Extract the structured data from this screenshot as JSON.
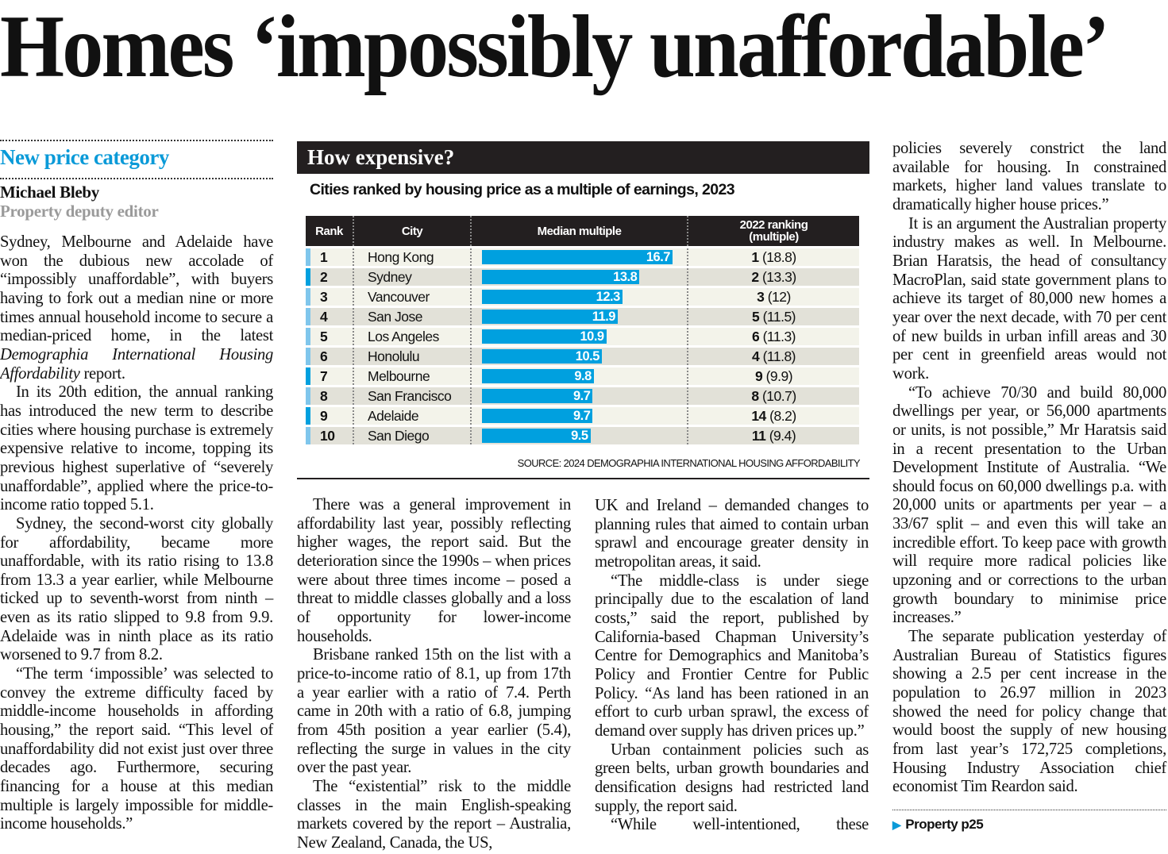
{
  "headline": "Homes ‘impossibly unaffordable’",
  "kicker": "New price category",
  "byline": {
    "name": "Michael Bleby",
    "role": "Property deputy editor"
  },
  "chart": {
    "title": "How expensive?",
    "subtitle": "Cities ranked by housing price as a multiple of earnings, 2023",
    "columns": [
      "Rank",
      "City",
      "Median multiple",
      "2022 ranking (multiple)"
    ],
    "rows": [
      {
        "rank": "1",
        "city": "Hong Kong",
        "multiple": "16.7",
        "value": 16.7,
        "prev_rank": "1",
        "prev_multiple": "(18.8)"
      },
      {
        "rank": "2",
        "city": "Sydney",
        "multiple": "13.8",
        "value": 13.8,
        "prev_rank": "2",
        "prev_multiple": "(13.3)"
      },
      {
        "rank": "3",
        "city": "Vancouver",
        "multiple": "12.3",
        "value": 12.3,
        "prev_rank": "3",
        "prev_multiple": "(12)"
      },
      {
        "rank": "4",
        "city": "San Jose",
        "multiple": "11.9",
        "value": 11.9,
        "prev_rank": "5",
        "prev_multiple": "(11.5)"
      },
      {
        "rank": "5",
        "city": "Los Angeles",
        "multiple": "10.9",
        "value": 10.9,
        "prev_rank": "6",
        "prev_multiple": "(11.3)"
      },
      {
        "rank": "6",
        "city": "Honolulu",
        "multiple": "10.5",
        "value": 10.5,
        "prev_rank": "4",
        "prev_multiple": "(11.8)"
      },
      {
        "rank": "7",
        "city": "Melbourne",
        "multiple": "9.8",
        "value": 9.8,
        "prev_rank": "9",
        "prev_multiple": "(9.9)"
      },
      {
        "rank": "8",
        "city": "San Francisco",
        "multiple": "9.7",
        "value": 9.7,
        "prev_rank": "8",
        "prev_multiple": "(10.7)"
      },
      {
        "rank": "9",
        "city": "Adelaide",
        "multiple": "9.7",
        "value": 9.7,
        "prev_rank": "14",
        "prev_multiple": "(8.2)"
      },
      {
        "rank": "10",
        "city": "San Diego",
        "multiple": "9.5",
        "value": 9.5,
        "prev_rank": "11",
        "prev_multiple": "(9.4)"
      }
    ],
    "source": "SOURCE: 2024 DEMOGRAPHIA INTERNATIONAL HOUSING AFFORDABILITY",
    "colors": {
      "bar": "#00a0df",
      "australian_flag": "#00a0df",
      "other_flag": "#7fc6ec"
    }
  },
  "col1": {
    "p1a": "Sydney, Melbourne and Adelaide have won the dubious new accolade of “impossibly unaffordable”, with buyers having to fork out a median nine or more times annual household income to secure a median-priced home, in the latest ",
    "p1_italic": "Demographia International Housing Affordability",
    "p1b": " report.",
    "p2": "In its 20th edition, the annual ranking has introduced the new term to describe cities where housing purchase is extremely expensive relative to income, topping its previous highest superlative of “severely unaffordable”, applied where the price-to-income ratio topped 5.1.",
    "p3": "Sydney, the second-worst city globally for affordability, became more unaffordable, with its ratio rising to 13.8 from 13.3 a year earlier, while Melbourne ticked up to seventh-worst from ninth – even as its ratio slipped to 9.8 from 9.9. Adelaide was in ninth place as its ratio worsened to 9.7 from 8.2.",
    "p4": "“The term ‘impossible’ was selected to convey the extreme difficulty faced by middle-income households in affording housing,” the report said. “This level of unaffordability did not exist just over three decades ago. Furthermore, securing financing for a house at this median multiple is largely impossible for middle-income households.”"
  },
  "col2": {
    "p1": "There was a general improvement in affordability last year, possibly reflecting higher wages, the report said. But the deterioration since the 1990s – when prices were about three times income – posed a threat to middle classes globally and a loss of opportunity for lower-income households.",
    "p2": "Brisbane ranked 15th on the list with a price-to-income ratio of 8.1, up from 17th a year earlier with a ratio of 7.4. Perth came in 20th with a ratio of 6.8, jumping from 45th position a year earlier (5.4), reflecting the surge in values in the city over the past year.",
    "p3": "The “existential” risk to the middle classes in the main English-speaking markets covered by the report – Australia, New Zealand, Canada, the US,"
  },
  "col3": {
    "p1": "UK and Ireland – demanded changes to planning rules that aimed to contain urban sprawl and encourage greater density in metropolitan areas, it said.",
    "p2": "“The middle-class is under siege principally due to the escalation of land costs,” said the report, published by California-based Chapman University’s Centre for Demographics and Manitoba’s Policy and Frontier Centre for Public Policy. “As land has been rationed in an effort to curb urban sprawl, the excess of demand over supply has driven prices up.”",
    "p3": "Urban containment policies such as green belts, urban growth boundaries and densification designs had restricted land supply, the report said.",
    "p4": "“While well-intentioned, these"
  },
  "col4": {
    "p1": "policies severely constrict the land available for housing. In constrained markets, higher land values translate to dramatically higher house prices.”",
    "p2": "It is an argument the Australian property industry makes as well. In Melbourne. Brian Haratsis, the head of consultancy MacroPlan, said state government plans to achieve its target of 80,000 new homes a year over the next decade, with 70 per cent of new builds in urban infill areas and 30 per cent in greenfield areas would not work.",
    "p3": "“To achieve 70/30 and build 80,000 dwellings per year, or 56,000 apartments or units, is not possible,” Mr Haratsis said in a recent presentation to the Urban Development Institute of Australia. “We should focus on 60,000 dwellings p.a. with 20,000 units or apartments per year – a 33/67 split – and even this will take an incredible effort. To keep pace with growth will require more radical policies like upzoning and or corrections to the urban growth boundary to minimise price increases.”",
    "p4": "The separate publication yesterday of Australian Bureau of Statistics figures showing a 2.5 per cent increase in the population to 26.97 million in 2023 showed the need for policy change that would boost the supply of new housing from last year’s 172,725 completions, Housing Industry Association chief economist Tim Reardon said.",
    "see_also": "Property p25"
  }
}
